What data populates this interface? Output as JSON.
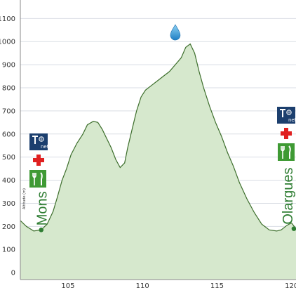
{
  "chart_data": {
    "type": "area",
    "title": "",
    "xlabel": "",
    "ylabel": "Altitude (m)",
    "xlim": [
      101.8,
      120.3
    ],
    "ylim": [
      -30,
      1180
    ],
    "x_ticks": [
      105,
      110,
      115,
      120
    ],
    "y_ticks": [
      0,
      100,
      200,
      300,
      400,
      500,
      600,
      700,
      800,
      900,
      1000,
      1100
    ],
    "grid": "horizontal",
    "fill_color": "#d6e8cd",
    "line_color": "#3d6e2c",
    "series": [
      {
        "x": [
          101.8,
          102.2,
          102.7,
          103.2,
          103.6,
          104.0,
          104.3,
          104.6,
          104.9,
          105.2,
          105.6,
          106.0,
          106.3,
          106.7,
          107.0,
          107.3,
          107.6,
          107.9,
          108.2,
          108.5,
          108.8,
          109.0,
          109.3,
          109.6,
          109.9,
          110.2,
          110.6,
          111.0,
          111.4,
          111.8,
          112.2,
          112.6,
          112.9,
          113.2,
          113.5,
          113.8,
          114.1,
          114.5,
          114.9,
          115.3,
          115.7,
          116.1,
          116.5,
          117.0,
          117.5,
          118.0,
          118.5,
          119.0,
          119.3,
          119.7,
          120.0,
          120.3
        ],
        "y": [
          225,
          200,
          180,
          185,
          210,
          265,
          330,
          400,
          450,
          510,
          560,
          600,
          640,
          655,
          650,
          620,
          580,
          540,
          490,
          455,
          475,
          540,
          620,
          700,
          760,
          790,
          810,
          830,
          850,
          870,
          900,
          930,
          975,
          990,
          950,
          870,
          800,
          720,
          650,
          590,
          520,
          460,
          390,
          320,
          260,
          210,
          185,
          180,
          185,
          205,
          215,
          190
        ]
      }
    ],
    "markers": [
      {
        "x": 103.2,
        "y": 185,
        "label": "Mons",
        "icons": [
          "tourism-office-icon",
          "pharmacy-icon",
          "restaurant-icon"
        ]
      },
      {
        "x": 120.3,
        "y": 190,
        "label": "Olargues",
        "icons": [
          "tourism-office-icon",
          "pharmacy-icon",
          "restaurant-icon"
        ]
      }
    ],
    "annotations": [
      {
        "x": 112.2,
        "y": 1040,
        "icon": "water-point-icon"
      }
    ],
    "office_icon_text": "net"
  }
}
